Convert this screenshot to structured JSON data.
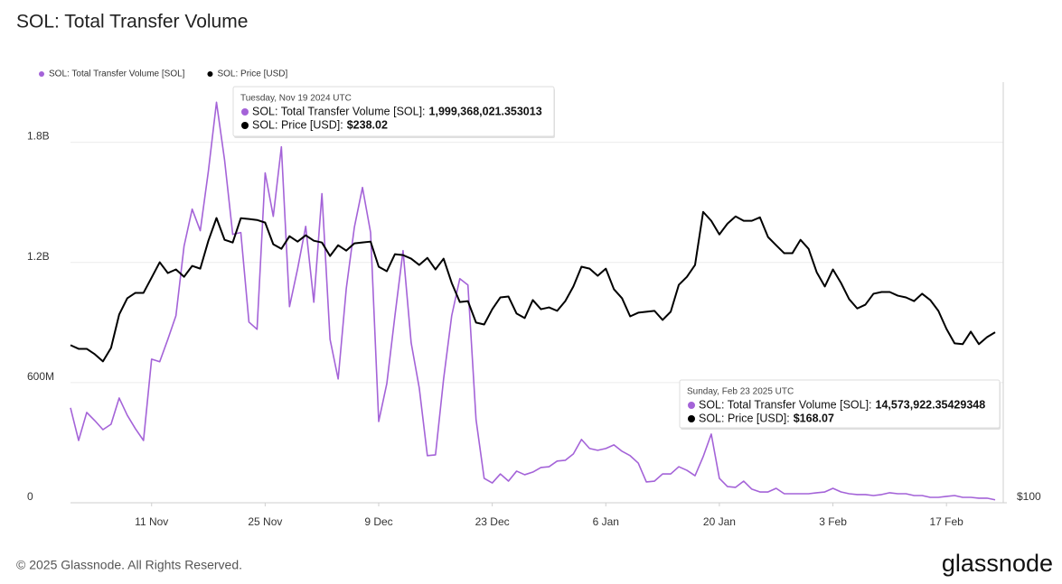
{
  "chart_data": {
    "type": "line",
    "title": "SOL: Total Transfer Volume",
    "footer": "© 2025 Glassnode. All Rights Reserved.",
    "brand": "glassnode",
    "x": [
      "2024-11-01",
      "2024-11-02",
      "2024-11-03",
      "2024-11-04",
      "2024-11-05",
      "2024-11-06",
      "2024-11-07",
      "2024-11-08",
      "2024-11-09",
      "2024-11-10",
      "2024-11-11",
      "2024-11-12",
      "2024-11-13",
      "2024-11-14",
      "2024-11-15",
      "2024-11-16",
      "2024-11-17",
      "2024-11-18",
      "2024-11-19",
      "2024-11-20",
      "2024-11-21",
      "2024-11-22",
      "2024-11-23",
      "2024-11-24",
      "2024-11-25",
      "2024-11-26",
      "2024-11-27",
      "2024-11-28",
      "2024-11-29",
      "2024-11-30",
      "2024-12-01",
      "2024-12-02",
      "2024-12-03",
      "2024-12-04",
      "2024-12-05",
      "2024-12-06",
      "2024-12-07",
      "2024-12-08",
      "2024-12-09",
      "2024-12-10",
      "2024-12-11",
      "2024-12-12",
      "2024-12-13",
      "2024-12-14",
      "2024-12-15",
      "2024-12-16",
      "2024-12-17",
      "2024-12-18",
      "2024-12-19",
      "2024-12-20",
      "2024-12-21",
      "2024-12-22",
      "2024-12-23",
      "2024-12-24",
      "2024-12-25",
      "2024-12-26",
      "2024-12-27",
      "2024-12-28",
      "2024-12-29",
      "2024-12-30",
      "2024-12-31",
      "2025-01-01",
      "2025-01-02",
      "2025-01-03",
      "2025-01-04",
      "2025-01-05",
      "2025-01-06",
      "2025-01-07",
      "2025-01-08",
      "2025-01-09",
      "2025-01-10",
      "2025-01-11",
      "2025-01-12",
      "2025-01-13",
      "2025-01-14",
      "2025-01-15",
      "2025-01-16",
      "2025-01-17",
      "2025-01-18",
      "2025-01-19",
      "2025-01-20",
      "2025-01-21",
      "2025-01-22",
      "2025-01-23",
      "2025-01-24",
      "2025-01-25",
      "2025-01-26",
      "2025-01-27",
      "2025-01-28",
      "2025-01-29",
      "2025-01-30",
      "2025-01-31",
      "2025-02-01",
      "2025-02-02",
      "2025-02-03",
      "2025-02-04",
      "2025-02-05",
      "2025-02-06",
      "2025-02-07",
      "2025-02-08",
      "2025-02-09",
      "2025-02-10",
      "2025-02-11",
      "2025-02-12",
      "2025-02-13",
      "2025-02-14",
      "2025-02-15",
      "2025-02-16",
      "2025-02-17",
      "2025-02-18",
      "2025-02-19",
      "2025-02-20",
      "2025-02-21",
      "2025-02-22",
      "2025-02-23"
    ],
    "xlim": [
      "2024-11-01",
      "2025-02-24"
    ],
    "xticks": [
      {
        "value": "2024-11-11",
        "label": "11 Nov"
      },
      {
        "value": "2024-11-25",
        "label": "25 Nov"
      },
      {
        "value": "2024-12-09",
        "label": "9 Dec"
      },
      {
        "value": "2024-12-23",
        "label": "23 Dec"
      },
      {
        "value": "2025-01-06",
        "label": "6 Jan"
      },
      {
        "value": "2025-01-20",
        "label": "20 Jan"
      },
      {
        "value": "2025-02-03",
        "label": "3 Feb"
      },
      {
        "value": "2025-02-17",
        "label": "17 Feb"
      }
    ],
    "ylim": [
      0,
      2100000000
    ],
    "yticks": [
      0,
      {
        "value": 600000000,
        "label": "600M"
      },
      {
        "value": 1200000000,
        "label": "1.2B"
      },
      {
        "value": 1800000000,
        "label": "1.8B"
      }
    ],
    "y2lim": [
      100,
      360
    ],
    "y2log": true,
    "y2ticks": [
      {
        "value": 100,
        "label": "$100"
      }
    ],
    "grid": true,
    "legend": "top-left",
    "series": [
      {
        "name": "SOL: Total Transfer Volume [SOL]",
        "color": "#a463d8",
        "axis": "y",
        "values": [
          474000000,
          311000000,
          451000000,
          410000000,
          365000000,
          392000000,
          523000000,
          437000000,
          370000000,
          311000000,
          717000000,
          704000000,
          816000000,
          934000000,
          1281000000,
          1466000000,
          1358000000,
          1656000000,
          1999368021.353013,
          1710000000,
          1340000000,
          1349000000,
          902000000,
          866000000,
          1647000000,
          1430000000,
          1777000000,
          979000000,
          1168000000,
          1380000000,
          1001000000,
          1543000000,
          816000000,
          618000000,
          1069000000,
          1376000000,
          1574000000,
          1349000000,
          406000000,
          595000000,
          934000000,
          1259000000,
          799000000,
          573000000,
          235000000,
          239000000,
          618000000,
          934000000,
          1119000000,
          1087000000,
          415000000,
          122000000,
          99000000,
          144000000,
          108000000,
          158000000,
          140000000,
          153000000,
          176000000,
          180000000,
          208000000,
          212000000,
          244000000,
          316000000,
          271000000,
          262000000,
          271000000,
          289000000,
          257000000,
          235000000,
          198000000,
          104000000,
          108000000,
          144000000,
          144000000,
          180000000,
          162000000,
          135000000,
          230000000,
          343000000,
          122000000,
          81000000,
          77000000,
          108000000,
          68000000,
          54000000,
          54000000,
          72000000,
          45000000,
          45000000,
          45000000,
          45000000,
          50000000,
          54000000,
          72000000,
          54000000,
          45000000,
          41000000,
          41000000,
          36000000,
          41000000,
          50000000,
          45000000,
          45000000,
          36000000,
          36000000,
          27000000,
          27000000,
          32000000,
          36000000,
          27000000,
          27000000,
          23000000,
          23000000,
          14573922.35429348
        ]
      },
      {
        "name": "SOL: Price [USD]",
        "color": "#000000",
        "axis": "y2",
        "values": [
          161.6,
          159.8,
          159.8,
          157.2,
          153.8,
          160.3,
          177.4,
          186.4,
          189.5,
          189.5,
          198.5,
          208.0,
          201.3,
          203.5,
          199.0,
          205.7,
          204.0,
          222.1,
          238.02,
          222.7,
          220.9,
          237.9,
          237.3,
          236.6,
          234.7,
          219.7,
          216.7,
          225.2,
          221.5,
          225.8,
          222.1,
          220.9,
          212.0,
          219.1,
          215.5,
          220.3,
          220.9,
          221.5,
          205.2,
          202.4,
          213.2,
          212.6,
          210.3,
          206.3,
          210.8,
          203.5,
          210.3,
          195.3,
          184.3,
          184.8,
          173.1,
          172.1,
          180.3,
          186.9,
          187.4,
          177.9,
          175.5,
          185.4,
          180.3,
          181.3,
          179.4,
          184.8,
          193.2,
          205.2,
          204.0,
          199.6,
          204.0,
          191.6,
          186.4,
          176.4,
          178.4,
          178.9,
          179.4,
          174.5,
          178.9,
          194.2,
          199.0,
          206.3,
          242.5,
          236.0,
          226.4,
          234.0,
          239.2,
          236.0,
          236.0,
          238.5,
          224.6,
          219.1,
          213.8,
          213.8,
          222.7,
          216.7,
          201.8,
          193.2,
          203.5,
          195.3,
          185.9,
          180.7,
          182.8,
          189.0,
          190.0,
          190.0,
          187.9,
          186.9,
          184.8,
          189.0,
          185.4,
          179.4,
          169.8,
          162.5,
          162.1,
          168.4,
          162.1,
          165.6,
          168.07
        ]
      }
    ],
    "tooltips": [
      {
        "date": "Tuesday, Nov 19 2024 UTC",
        "rows": [
          {
            "label": "SOL: Total Transfer Volume [SOL]:",
            "value": "1,999,368,021.353013"
          },
          {
            "label": "SOL: Price [USD]:",
            "value": "$238.02"
          }
        ]
      },
      {
        "date": "Sunday, Feb 23 2025 UTC",
        "rows": [
          {
            "label": "SOL: Total Transfer Volume [SOL]:",
            "value": "14,573,922.35429348"
          },
          {
            "label": "SOL: Price [USD]:",
            "value": "$168.07"
          }
        ]
      }
    ]
  }
}
